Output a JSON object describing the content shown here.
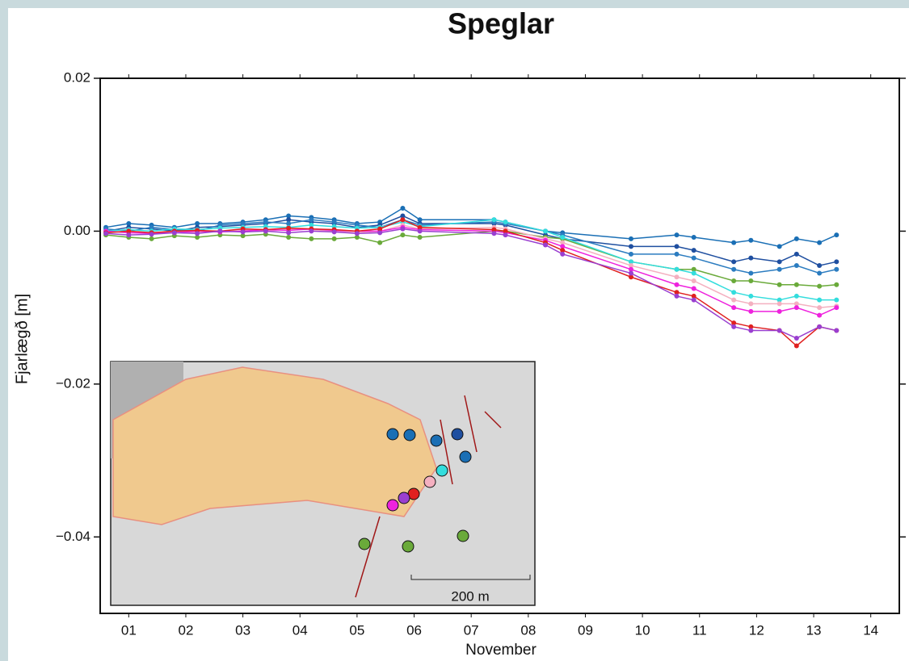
{
  "chart_data": {
    "type": "line",
    "title": "Speglar",
    "ylabel": "Fjarlægð [m]",
    "xlabel": "November",
    "x": [
      1.1,
      1.5,
      1.9,
      2.3,
      2.7,
      3.1,
      3.5,
      3.9,
      4.3,
      4.7,
      5.1,
      5.5,
      5.9,
      6.3,
      6.6,
      7.9,
      8.1,
      8.8,
      9.1,
      10.3,
      11.1,
      11.4,
      12.1,
      12.4,
      12.9,
      13.2,
      13.6,
      13.9
    ],
    "series": [
      {
        "color": "#1a6fb5",
        "values": [
          0.0005,
          0.001,
          0.0008,
          0.0005,
          0.001,
          0.001,
          0.0012,
          0.0015,
          0.002,
          0.0018,
          0.0015,
          0.001,
          0.0012,
          0.003,
          0.0015,
          0.0015,
          0.0012,
          0.0,
          -0.0002,
          -0.001,
          -0.0005,
          -0.0008,
          -0.0015,
          -0.0012,
          -0.002,
          -0.001,
          -0.0015,
          -0.0005
        ]
      },
      {
        "color": "#1f4fa0",
        "values": [
          0.0,
          0.0005,
          0.0003,
          0.0,
          0.0005,
          0.0006,
          0.0008,
          0.001,
          0.0015,
          0.0012,
          0.001,
          0.0005,
          0.0008,
          0.002,
          0.001,
          0.001,
          0.0008,
          -0.0005,
          -0.001,
          -0.002,
          -0.002,
          -0.0025,
          -0.004,
          -0.0035,
          -0.004,
          -0.003,
          -0.0045,
          -0.004
        ]
      },
      {
        "color": "#2b7cc0",
        "values": [
          0.0003,
          0.0,
          0.0005,
          0.0002,
          0.0,
          0.0008,
          0.001,
          0.0012,
          0.001,
          0.0015,
          0.0012,
          0.0008,
          0.0005,
          0.0015,
          0.0008,
          0.0012,
          0.001,
          0.0,
          -0.0005,
          -0.003,
          -0.003,
          -0.0035,
          -0.005,
          -0.0055,
          -0.005,
          -0.0045,
          -0.0055,
          -0.005
        ]
      },
      {
        "color": "#6aaa3a",
        "values": [
          -0.0005,
          -0.0008,
          -0.001,
          -0.0006,
          -0.0008,
          -0.0005,
          -0.0006,
          -0.0004,
          -0.0008,
          -0.001,
          -0.001,
          -0.0008,
          -0.0015,
          -0.0005,
          -0.0008,
          0.0,
          0.0,
          -0.0008,
          -0.001,
          -0.004,
          -0.005,
          -0.005,
          -0.0065,
          -0.0065,
          -0.007,
          -0.007,
          -0.0072,
          -0.007
        ]
      },
      {
        "color": "#33dddd",
        "values": [
          0.0,
          0.0002,
          0.0,
          0.0003,
          0.0002,
          0.0004,
          0.0005,
          0.0006,
          0.0005,
          0.0008,
          0.0006,
          0.0004,
          0.0005,
          0.0012,
          0.0006,
          0.0015,
          0.0012,
          0.0,
          -0.0008,
          -0.004,
          -0.005,
          -0.0055,
          -0.008,
          -0.0085,
          -0.009,
          -0.0085,
          -0.009,
          -0.009
        ]
      },
      {
        "color": "#f4b0c0",
        "values": [
          -0.0002,
          0.0,
          -0.0003,
          0.0,
          -0.0002,
          0.0,
          0.0002,
          0.0,
          0.0003,
          0.0002,
          0.0,
          -0.0002,
          0.0,
          0.0008,
          0.0003,
          0.0005,
          0.0003,
          -0.001,
          -0.0015,
          -0.0045,
          -0.006,
          -0.0065,
          -0.009,
          -0.0095,
          -0.0095,
          -0.0095,
          -0.01,
          -0.0098
        ]
      },
      {
        "color": "#ee22dd",
        "values": [
          0.0,
          -0.0002,
          -0.0003,
          -0.0002,
          0.0,
          -0.0001,
          0.0,
          0.0002,
          0.0001,
          0.0003,
          0.0001,
          0.0,
          0.0,
          0.0005,
          0.0002,
          0.0,
          -0.0002,
          -0.0012,
          -0.002,
          -0.005,
          -0.007,
          -0.0075,
          -0.01,
          -0.0105,
          -0.0105,
          -0.01,
          -0.011,
          -0.01
        ]
      },
      {
        "color": "#e0201f",
        "values": [
          -0.0002,
          0.0,
          -0.0002,
          0.0,
          0.0001,
          0.0,
          0.0003,
          0.0002,
          0.0004,
          0.0003,
          0.0002,
          0.0,
          0.0003,
          0.0015,
          0.0005,
          0.0002,
          0.0,
          -0.0015,
          -0.0025,
          -0.006,
          -0.008,
          -0.0085,
          -0.012,
          -0.0125,
          -0.013,
          -0.015,
          -0.0125,
          -0.013
        ]
      },
      {
        "color": "#9a3fd0",
        "values": [
          -0.0003,
          -0.0005,
          -0.0004,
          -0.0002,
          -0.0003,
          0.0,
          -0.0001,
          0.0,
          -0.0002,
          0.0,
          -0.0001,
          -0.0003,
          -0.0002,
          0.0003,
          0.0,
          -0.0003,
          -0.0005,
          -0.0018,
          -0.003,
          -0.0055,
          -0.0085,
          -0.009,
          -0.0125,
          -0.013,
          -0.013,
          -0.014,
          -0.0125,
          -0.013
        ]
      }
    ],
    "xlim": [
      1,
      15
    ],
    "ylim": [
      -0.05,
      0.02
    ],
    "yticks": [
      {
        "value": -0.04,
        "label": "−0.04"
      },
      {
        "value": -0.02,
        "label": "−0.02"
      },
      {
        "value": 0,
        "label": "0.00"
      },
      {
        "value": 0.02,
        "label": "0.02"
      }
    ],
    "xticks": [
      {
        "value": 1.5,
        "label": "01"
      },
      {
        "value": 2.5,
        "label": "02"
      },
      {
        "value": 3.5,
        "label": "03"
      },
      {
        "value": 4.5,
        "label": "04"
      },
      {
        "value": 5.5,
        "label": "05"
      },
      {
        "value": 6.5,
        "label": "06"
      },
      {
        "value": 7.5,
        "label": "07"
      },
      {
        "value": 8.5,
        "label": "08"
      },
      {
        "value": 9.5,
        "label": "09"
      },
      {
        "value": 10.5,
        "label": "10"
      },
      {
        "value": 11.5,
        "label": "11"
      },
      {
        "value": 12.5,
        "label": "12"
      },
      {
        "value": 13.5,
        "label": "13"
      },
      {
        "value": 14.5,
        "label": "14"
      }
    ],
    "annotations": [
      "200 m"
    ]
  }
}
